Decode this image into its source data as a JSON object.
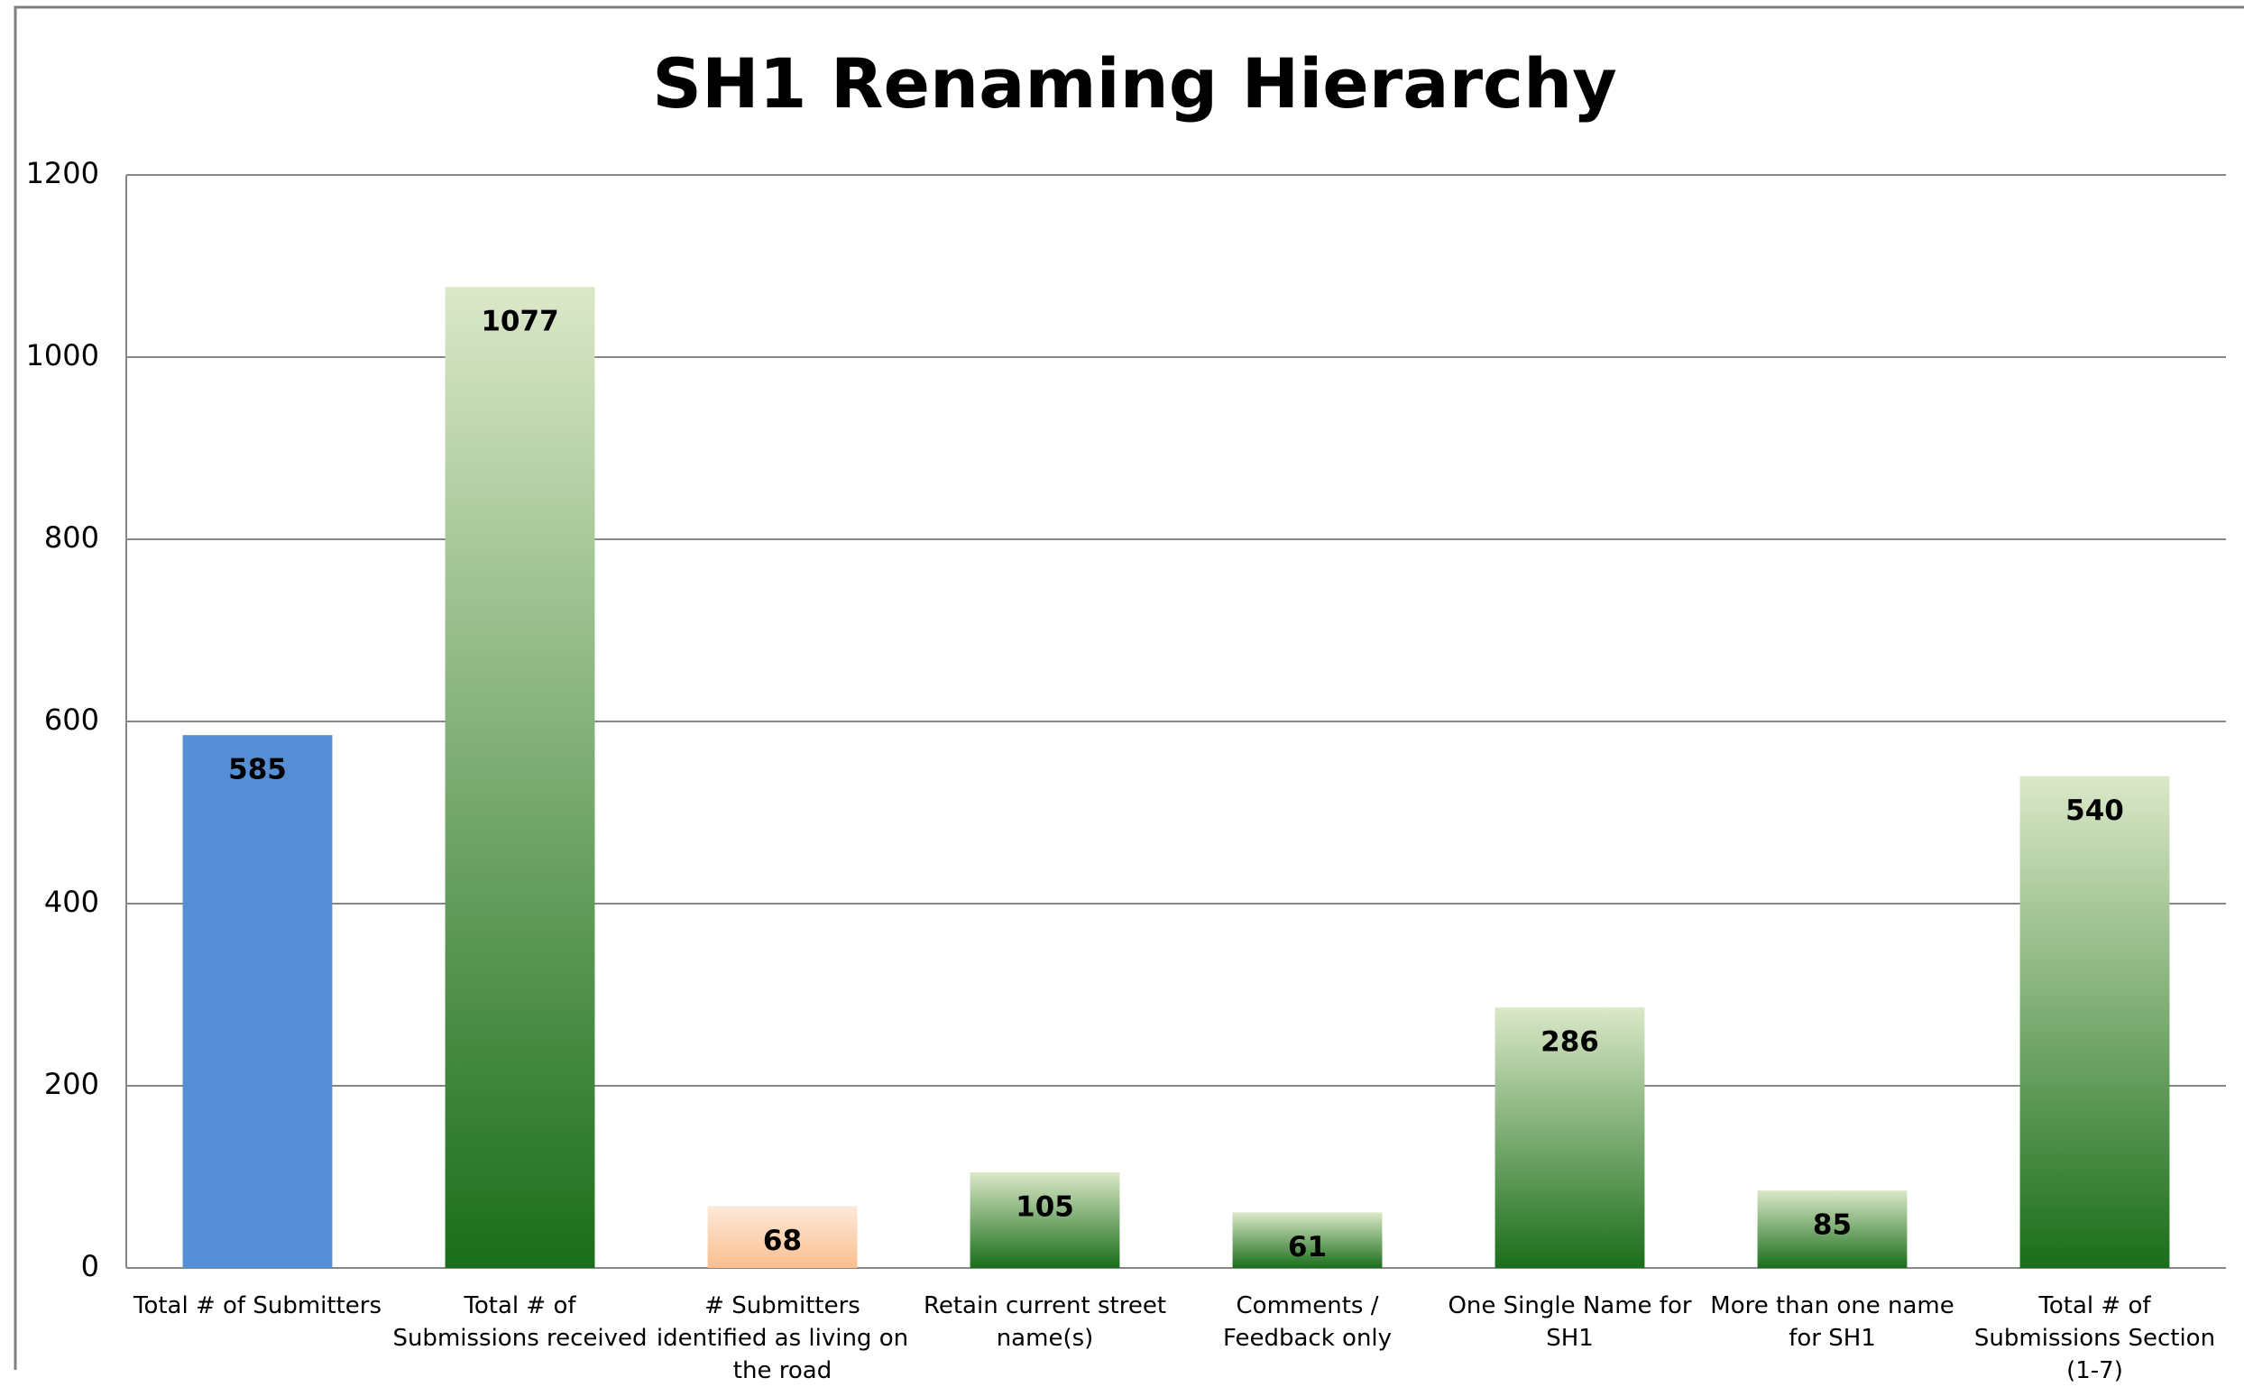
{
  "chart_data": {
    "type": "bar",
    "title": "SH1 Renaming Hierarchy",
    "categories": [
      "Total # of Submitters",
      "Total # of Submissions received",
      "# Submitters identified as living on the road",
      "Retain current street name(s)",
      "Comments / Feedback only",
      "One Single Name for SH1",
      "More than one name for SH1",
      "Total # of Submissions Section (1-7)"
    ],
    "values": [
      585,
      1077,
      68,
      105,
      61,
      286,
      85,
      540
    ],
    "colors": [
      "#558ed5",
      "#1a6e1a",
      "#fabf8f",
      "#1a6e1a",
      "#1a6e1a",
      "#1a6e1a",
      "#1a6e1a",
      "#1a6e1a"
    ],
    "gradient_tops": [
      "#558ed5",
      "#dbe8c8",
      "#fde9d9",
      "#dbe8c8",
      "#dbe8c8",
      "#dbe8c8",
      "#dbe8c8",
      "#dbe8c8"
    ],
    "ylim": [
      0,
      1200
    ],
    "yticks": [
      0,
      200,
      400,
      600,
      800,
      1000,
      1200
    ],
    "grid": true
  }
}
